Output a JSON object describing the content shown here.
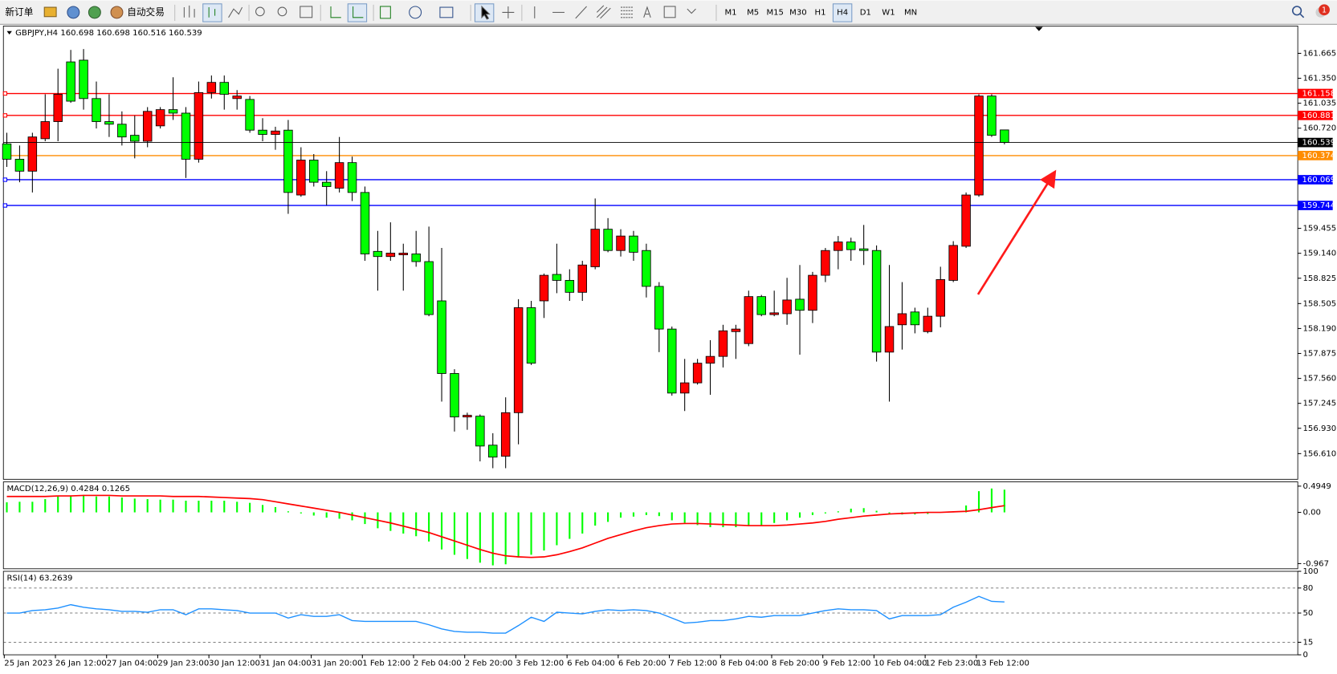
{
  "toolbar": {
    "buttons": [
      "新订单",
      "自动交易"
    ],
    "timeframes": [
      "M1",
      "M5",
      "M15",
      "M30",
      "H1",
      "H4",
      "D1",
      "W1",
      "MN"
    ],
    "notification_count": 1
  },
  "chart_data": [
    {
      "type": "candlestick",
      "symbol": "GBPJPY,H4",
      "up_color": "#ff0000",
      "down_color": "#00ff00",
      "categories": [
        "25 Jan 2023",
        null,
        null,
        null,
        "26 Jan 12:00",
        null,
        null,
        null,
        "27 Jan 04:00",
        null,
        null,
        null,
        "29 Jan 23:00",
        null,
        null,
        null,
        "30 Jan 12:00",
        null,
        null,
        null,
        "31 Jan 04:00",
        null,
        null,
        null,
        "31 Jan 20:00",
        null,
        null,
        null,
        "1 Feb 12:00",
        null,
        null,
        null,
        "2 Feb 04:00",
        null,
        null,
        null,
        "2 Feb 20:00",
        null,
        null,
        null,
        "3 Feb 12:00",
        null,
        null,
        null,
        "6 Feb 04:00",
        null,
        null,
        null,
        "6 Feb 20:00",
        null,
        null,
        null,
        "7 Feb 12:00",
        null,
        null,
        null,
        "8 Feb 04:00",
        null,
        null,
        null,
        "8 Feb 20:00",
        null,
        null,
        null,
        "9 Feb 12:00",
        null,
        null,
        null,
        "10 Feb 04:00",
        null,
        null,
        null,
        "12 Feb 23:00",
        null,
        null,
        null,
        "13 Feb 12:00",
        null,
        null
      ],
      "open": [
        160.522,
        160.328,
        160.177,
        160.587,
        160.803,
        161.557,
        161.579,
        161.094,
        160.803,
        160.77,
        160.63,
        160.555,
        160.749,
        160.954,
        160.91,
        160.328,
        161.169,
        161.298,
        161.094,
        161.083,
        160.695,
        160.641,
        160.695,
        159.876,
        160.317,
        160.037,
        159.962,
        160.285,
        159.908,
        159.164,
        159.099,
        159.121,
        159.132,
        159.035,
        158.539,
        157.622,
        157.073,
        157.083,
        156.717,
        156.577,
        157.127,
        158.453,
        158.539,
        158.873,
        158.798,
        158.647,
        158.97,
        159.444,
        159.175,
        159.358,
        159.175,
        158.722,
        158.183,
        157.375,
        157.504,
        157.752,
        157.838,
        158.151,
        158.0,
        158.593,
        158.366,
        158.377,
        158.56,
        158.42,
        158.862,
        159.175,
        159.283,
        159.196,
        159.175,
        157.892,
        158.237,
        158.399,
        158.151,
        158.345,
        158.798,
        159.229,
        159.876,
        161.126,
        160.698
      ],
      "high": [
        160.662,
        160.501,
        160.662,
        161.148,
        161.471,
        161.708,
        161.719,
        161.309,
        161.148,
        160.932,
        160.878,
        160.986,
        160.986,
        161.363,
        160.986,
        161.309,
        161.385,
        161.385,
        161.201,
        161.126,
        160.846,
        160.738,
        160.824,
        160.479,
        160.393,
        160.177,
        160.609,
        160.361,
        159.983,
        159.423,
        159.531,
        159.261,
        159.423,
        159.477,
        159.207,
        157.676,
        157.127,
        157.105,
        156.868,
        157.321,
        158.56,
        158.539,
        158.884,
        159.261,
        158.938,
        159.045,
        159.832,
        159.584,
        159.444,
        159.423,
        159.261,
        158.776,
        158.215,
        157.806,
        157.806,
        158.043,
        158.237,
        158.237,
        158.668,
        158.614,
        158.668,
        158.83,
        158.992,
        158.905,
        159.207,
        159.358,
        159.337,
        159.498,
        159.239,
        158.992,
        158.776,
        158.453,
        158.453,
        158.97,
        159.293,
        159.908,
        161.148,
        161.148,
        160.698
      ],
      "low": [
        160.231,
        160.037,
        159.908,
        160.555,
        160.555,
        161.04,
        160.954,
        160.716,
        160.609,
        160.501,
        160.339,
        160.479,
        160.716,
        160.824,
        160.091,
        160.285,
        161.094,
        160.954,
        160.954,
        160.662,
        160.555,
        160.447,
        159.638,
        159.854,
        159.983,
        159.746,
        159.908,
        159.8,
        159.045,
        158.668,
        159.045,
        158.668,
        158.97,
        158.345,
        157.267,
        156.889,
        156.911,
        156.512,
        156.426,
        156.426,
        156.728,
        157.73,
        158.323,
        158.636,
        158.539,
        158.539,
        158.938,
        159.153,
        159.099,
        159.045,
        158.582,
        157.892,
        157.342,
        157.148,
        157.482,
        157.353,
        157.698,
        157.806,
        157.967,
        158.345,
        158.345,
        158.237,
        157.86,
        158.259,
        158.776,
        158.938,
        159.045,
        158.992,
        157.773,
        157.267,
        157.924,
        158.129,
        158.129,
        158.205,
        158.776,
        159.207,
        159.854,
        160.609,
        160.516
      ],
      "close": [
        160.328,
        160.177,
        160.609,
        160.803,
        161.148,
        161.061,
        161.094,
        160.803,
        160.77,
        160.609,
        160.555,
        160.932,
        160.954,
        160.91,
        160.328,
        161.169,
        161.298,
        161.148,
        161.126,
        160.695,
        160.641,
        160.684,
        159.908,
        160.317,
        160.037,
        159.983,
        160.285,
        159.908,
        159.132,
        159.099,
        159.142,
        159.142,
        159.035,
        158.366,
        157.622,
        157.073,
        157.094,
        156.706,
        156.566,
        157.127,
        158.453,
        157.752,
        158.862,
        158.798,
        158.647,
        158.992,
        159.444,
        159.175,
        159.358,
        159.153,
        158.722,
        158.183,
        157.375,
        157.504,
        157.752,
        157.838,
        158.161,
        158.183,
        158.593,
        158.366,
        158.388,
        158.55,
        158.42,
        158.862,
        159.175,
        159.283,
        159.186,
        159.175,
        157.892,
        158.215,
        158.377,
        158.237,
        158.345,
        158.808,
        159.239,
        159.876,
        161.126,
        160.63,
        160.539
      ],
      "levels": [
        {
          "value": 161.158,
          "color": "#ff0000"
        },
        {
          "value": 160.881,
          "color": "#ff0000"
        },
        {
          "value": 160.374,
          "color": "#ff8c00"
        },
        {
          "value": 160.069,
          "color": "#0000ff"
        },
        {
          "value": 159.744,
          "color": "#0000ff"
        }
      ],
      "ylim": [
        156.286,
        162.01
      ],
      "yticks": [
        161.665,
        {
          "value": 161.35,
          "label": "161.350"
        },
        161.035,
        {
          "value": 160.72,
          "label": "160.720"
        },
        159.455,
        {
          "value": 159.14,
          "label": "159.140"
        },
        158.825,
        158.505,
        {
          "value": 158.19,
          "label": "158.190"
        },
        157.875,
        {
          "value": 157.56,
          "label": "157.560"
        },
        157.245,
        {
          "value": 156.93,
          "label": "156.930"
        },
        {
          "value": 156.61,
          "label": "156.610"
        }
      ]
    },
    {
      "type": "macd",
      "title": "MACD(12,26,9)",
      "histogram": {
        "color": "#00ff00",
        "values": [
          0.19,
          0.2,
          0.2,
          0.25,
          0.3,
          0.32,
          0.33,
          0.3,
          0.3,
          0.28,
          0.26,
          0.25,
          0.24,
          0.24,
          0.22,
          0.22,
          0.22,
          0.22,
          0.2,
          0.18,
          0.14,
          0.1,
          0.02,
          -0.02,
          -0.06,
          -0.1,
          -0.12,
          -0.15,
          -0.22,
          -0.3,
          -0.35,
          -0.4,
          -0.45,
          -0.55,
          -0.7,
          -0.8,
          -0.88,
          -0.95,
          -1.0,
          -0.98,
          -0.85,
          -0.8,
          -0.72,
          -0.62,
          -0.5,
          -0.4,
          -0.25,
          -0.18,
          -0.1,
          -0.08,
          -0.05,
          -0.07,
          -0.15,
          -0.2,
          -0.24,
          -0.28,
          -0.28,
          -0.28,
          -0.26,
          -0.25,
          -0.2,
          -0.15,
          -0.1,
          -0.05,
          -0.02,
          0.02,
          0.07,
          0.08,
          0.03,
          -0.03,
          -0.04,
          -0.04,
          -0.03,
          0.0,
          0.01,
          0.13,
          0.4,
          0.45,
          0.4284
        ]
      },
      "signal": {
        "color": "#ff0000",
        "values": [
          0.3,
          0.3,
          0.3,
          0.3,
          0.31,
          0.31,
          0.32,
          0.32,
          0.32,
          0.31,
          0.31,
          0.31,
          0.31,
          0.3,
          0.3,
          0.3,
          0.29,
          0.28,
          0.27,
          0.26,
          0.24,
          0.2,
          0.16,
          0.12,
          0.08,
          0.04,
          0.0,
          -0.05,
          -0.1,
          -0.15,
          -0.2,
          -0.26,
          -0.32,
          -0.38,
          -0.46,
          -0.54,
          -0.62,
          -0.7,
          -0.77,
          -0.82,
          -0.84,
          -0.85,
          -0.84,
          -0.8,
          -0.74,
          -0.67,
          -0.58,
          -0.49,
          -0.42,
          -0.35,
          -0.29,
          -0.25,
          -0.22,
          -0.21,
          -0.21,
          -0.22,
          -0.23,
          -0.24,
          -0.25,
          -0.25,
          -0.25,
          -0.24,
          -0.22,
          -0.2,
          -0.17,
          -0.13,
          -0.1,
          -0.07,
          -0.05,
          -0.03,
          -0.02,
          -0.01,
          0.0,
          0.0,
          0.01,
          0.02,
          0.05,
          0.09,
          0.1265
        ]
      },
      "ylim": [
        -1.064,
        0.576
      ],
      "yticks": [
        0.4949,
        {
          "value": 0,
          "label": "0.00"
        },
        -0.967
      ]
    },
    {
      "type": "line",
      "title": "RSI(14)",
      "color": "#1e90ff",
      "grid": "dashed",
      "values": [
        50,
        50,
        53,
        54,
        56,
        60,
        57,
        55,
        54,
        52,
        52,
        51,
        54,
        54,
        48,
        55,
        55,
        54,
        53,
        50,
        50,
        50,
        44,
        48,
        46,
        46,
        48,
        41,
        40,
        40,
        40,
        40,
        40,
        36,
        31,
        28,
        27,
        27,
        26,
        26,
        35,
        45,
        40,
        51,
        50,
        49,
        52,
        54,
        53,
        54,
        53,
        50,
        44,
        38,
        39,
        41,
        41,
        43,
        46,
        45,
        47,
        47,
        47,
        50,
        53,
        55,
        54,
        54,
        53,
        43,
        47,
        47,
        47,
        48,
        57,
        63,
        70,
        64,
        63.2639
      ],
      "ylim": [
        0,
        100
      ],
      "yticks": [
        100,
        80,
        50,
        15,
        0
      ]
    }
  ]
}
